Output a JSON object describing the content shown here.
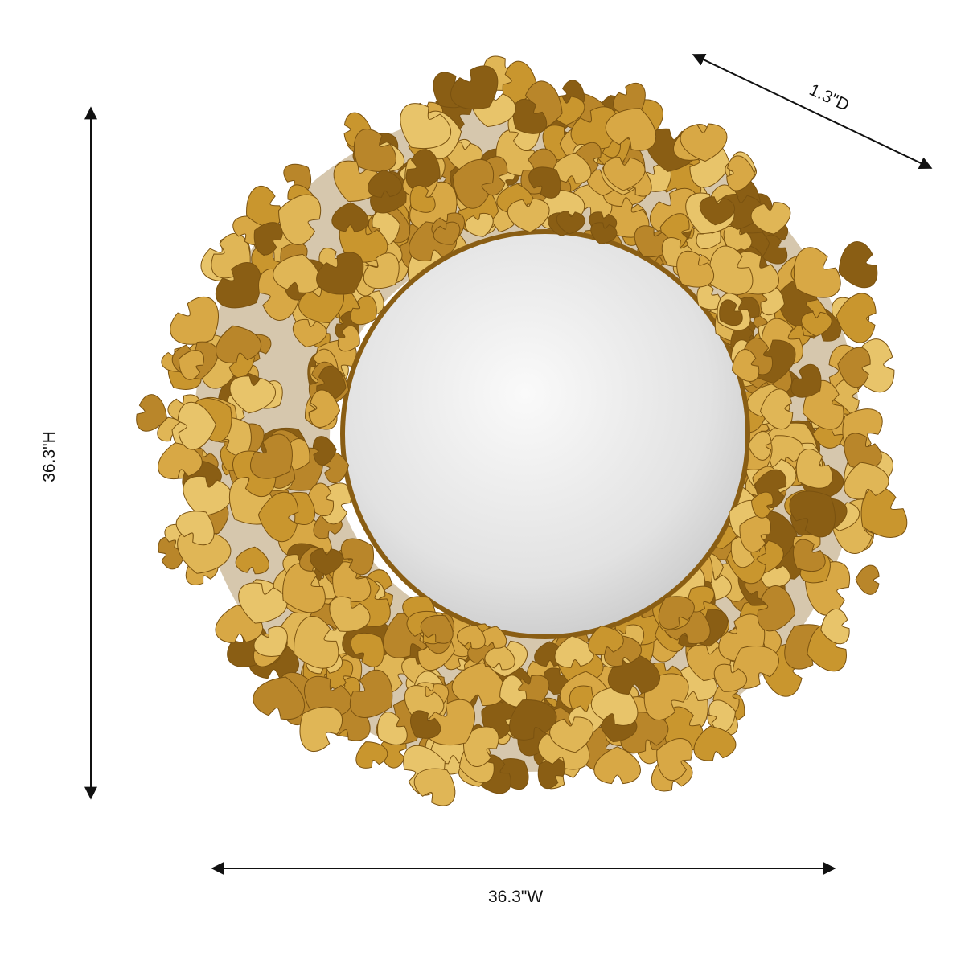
{
  "dimensions": {
    "height_label": "36.3\"H",
    "width_label": "36.3\"W",
    "depth_label": "1.3\"D"
  },
  "product": {
    "frame_color": "#C9962E",
    "frame_highlight": "#E8C46A",
    "frame_shadow": "#8A5E14",
    "mirror_color": "#E6E6E6"
  },
  "line_color": "#111111"
}
